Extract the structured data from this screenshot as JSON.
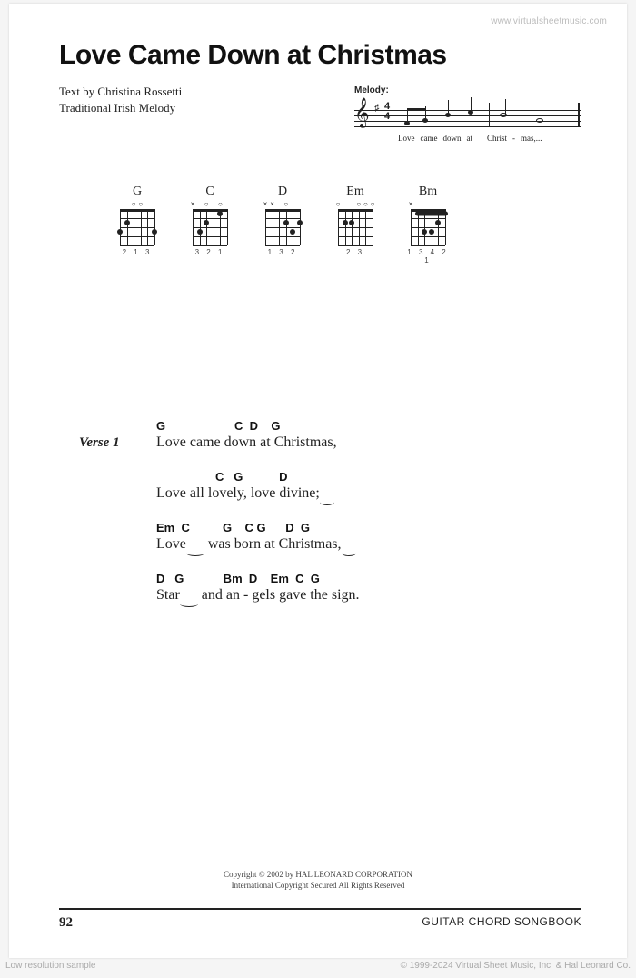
{
  "watermark_top": "www.virtualsheetmusic.com",
  "title": "Love Came Down at Christmas",
  "credits": {
    "line1": "Text by Christina Rossetti",
    "line2": "Traditional Irish Melody"
  },
  "melody": {
    "label": "Melody:",
    "lyrics": [
      "Love",
      "came",
      "down",
      "at",
      "Christ",
      "-",
      "mas,..."
    ]
  },
  "chords": [
    {
      "name": "G",
      "fingering": "2 1     3",
      "open": [
        2,
        3
      ],
      "mute": [],
      "dots": [
        [
          0,
          2,
          14
        ],
        [
          1,
          1,
          14
        ],
        [
          5,
          2,
          14
        ]
      ]
    },
    {
      "name": "C",
      "fingering": "  3 2   1",
      "open": [
        2,
        4
      ],
      "mute": [
        0
      ],
      "dots": [
        [
          1,
          2,
          14
        ],
        [
          2,
          1,
          14
        ],
        [
          4,
          0,
          14
        ]
      ]
    },
    {
      "name": "D",
      "fingering": "    1 3 2",
      "open": [
        3
      ],
      "mute": [
        0,
        1
      ],
      "dots": [
        [
          3,
          1,
          14
        ],
        [
          4,
          2,
          14
        ],
        [
          5,
          1,
          14
        ]
      ]
    },
    {
      "name": "Em",
      "fingering": "  2 3",
      "open": [
        0,
        3,
        4,
        5
      ],
      "mute": [],
      "dots": [
        [
          1,
          1,
          14
        ],
        [
          2,
          1,
          14
        ]
      ]
    },
    {
      "name": "Bm",
      "fingering": "1 3 4 2 1",
      "open": [],
      "mute": [
        0
      ],
      "dots": [
        [
          2,
          2,
          14
        ],
        [
          3,
          2,
          14
        ],
        [
          4,
          1,
          14
        ]
      ],
      "barre": {
        "from": 1,
        "to": 5,
        "fret": 1
      }
    }
  ],
  "verse": {
    "label": "Verse 1",
    "lines": [
      {
        "chords": "G                     C  D    G",
        "lyric_pre": "Love came down at Christmas,",
        "lyric_tie": ""
      },
      {
        "chords": "                  C   G           D",
        "lyric_pre": "Love all lovely, love divine;",
        "lyric_tie": "    "
      },
      {
        "chords": "Em  C          G    C G      D  G",
        "lyric_pre": "Love",
        "lyric_tie": "     ",
        "lyric_post": " was born at Christmas,",
        "lyric_tie2": "    "
      },
      {
        "chords": "D   G            Bm  D    Em  C  G",
        "lyric_pre": "Star",
        "lyric_tie": "     ",
        "lyric_post": " and an - gels gave the sign."
      }
    ]
  },
  "copyright": {
    "line1": "Copyright © 2002 by HAL LEONARD CORPORATION",
    "line2": "International Copyright Secured   All Rights Reserved"
  },
  "page_number": "92",
  "book": "GUITAR CHORD SONGBOOK",
  "sample_label": "Low resolution sample",
  "bottom_copyright": "© 1999-2024 Virtual Sheet Music, Inc. & Hal Leonard Co."
}
